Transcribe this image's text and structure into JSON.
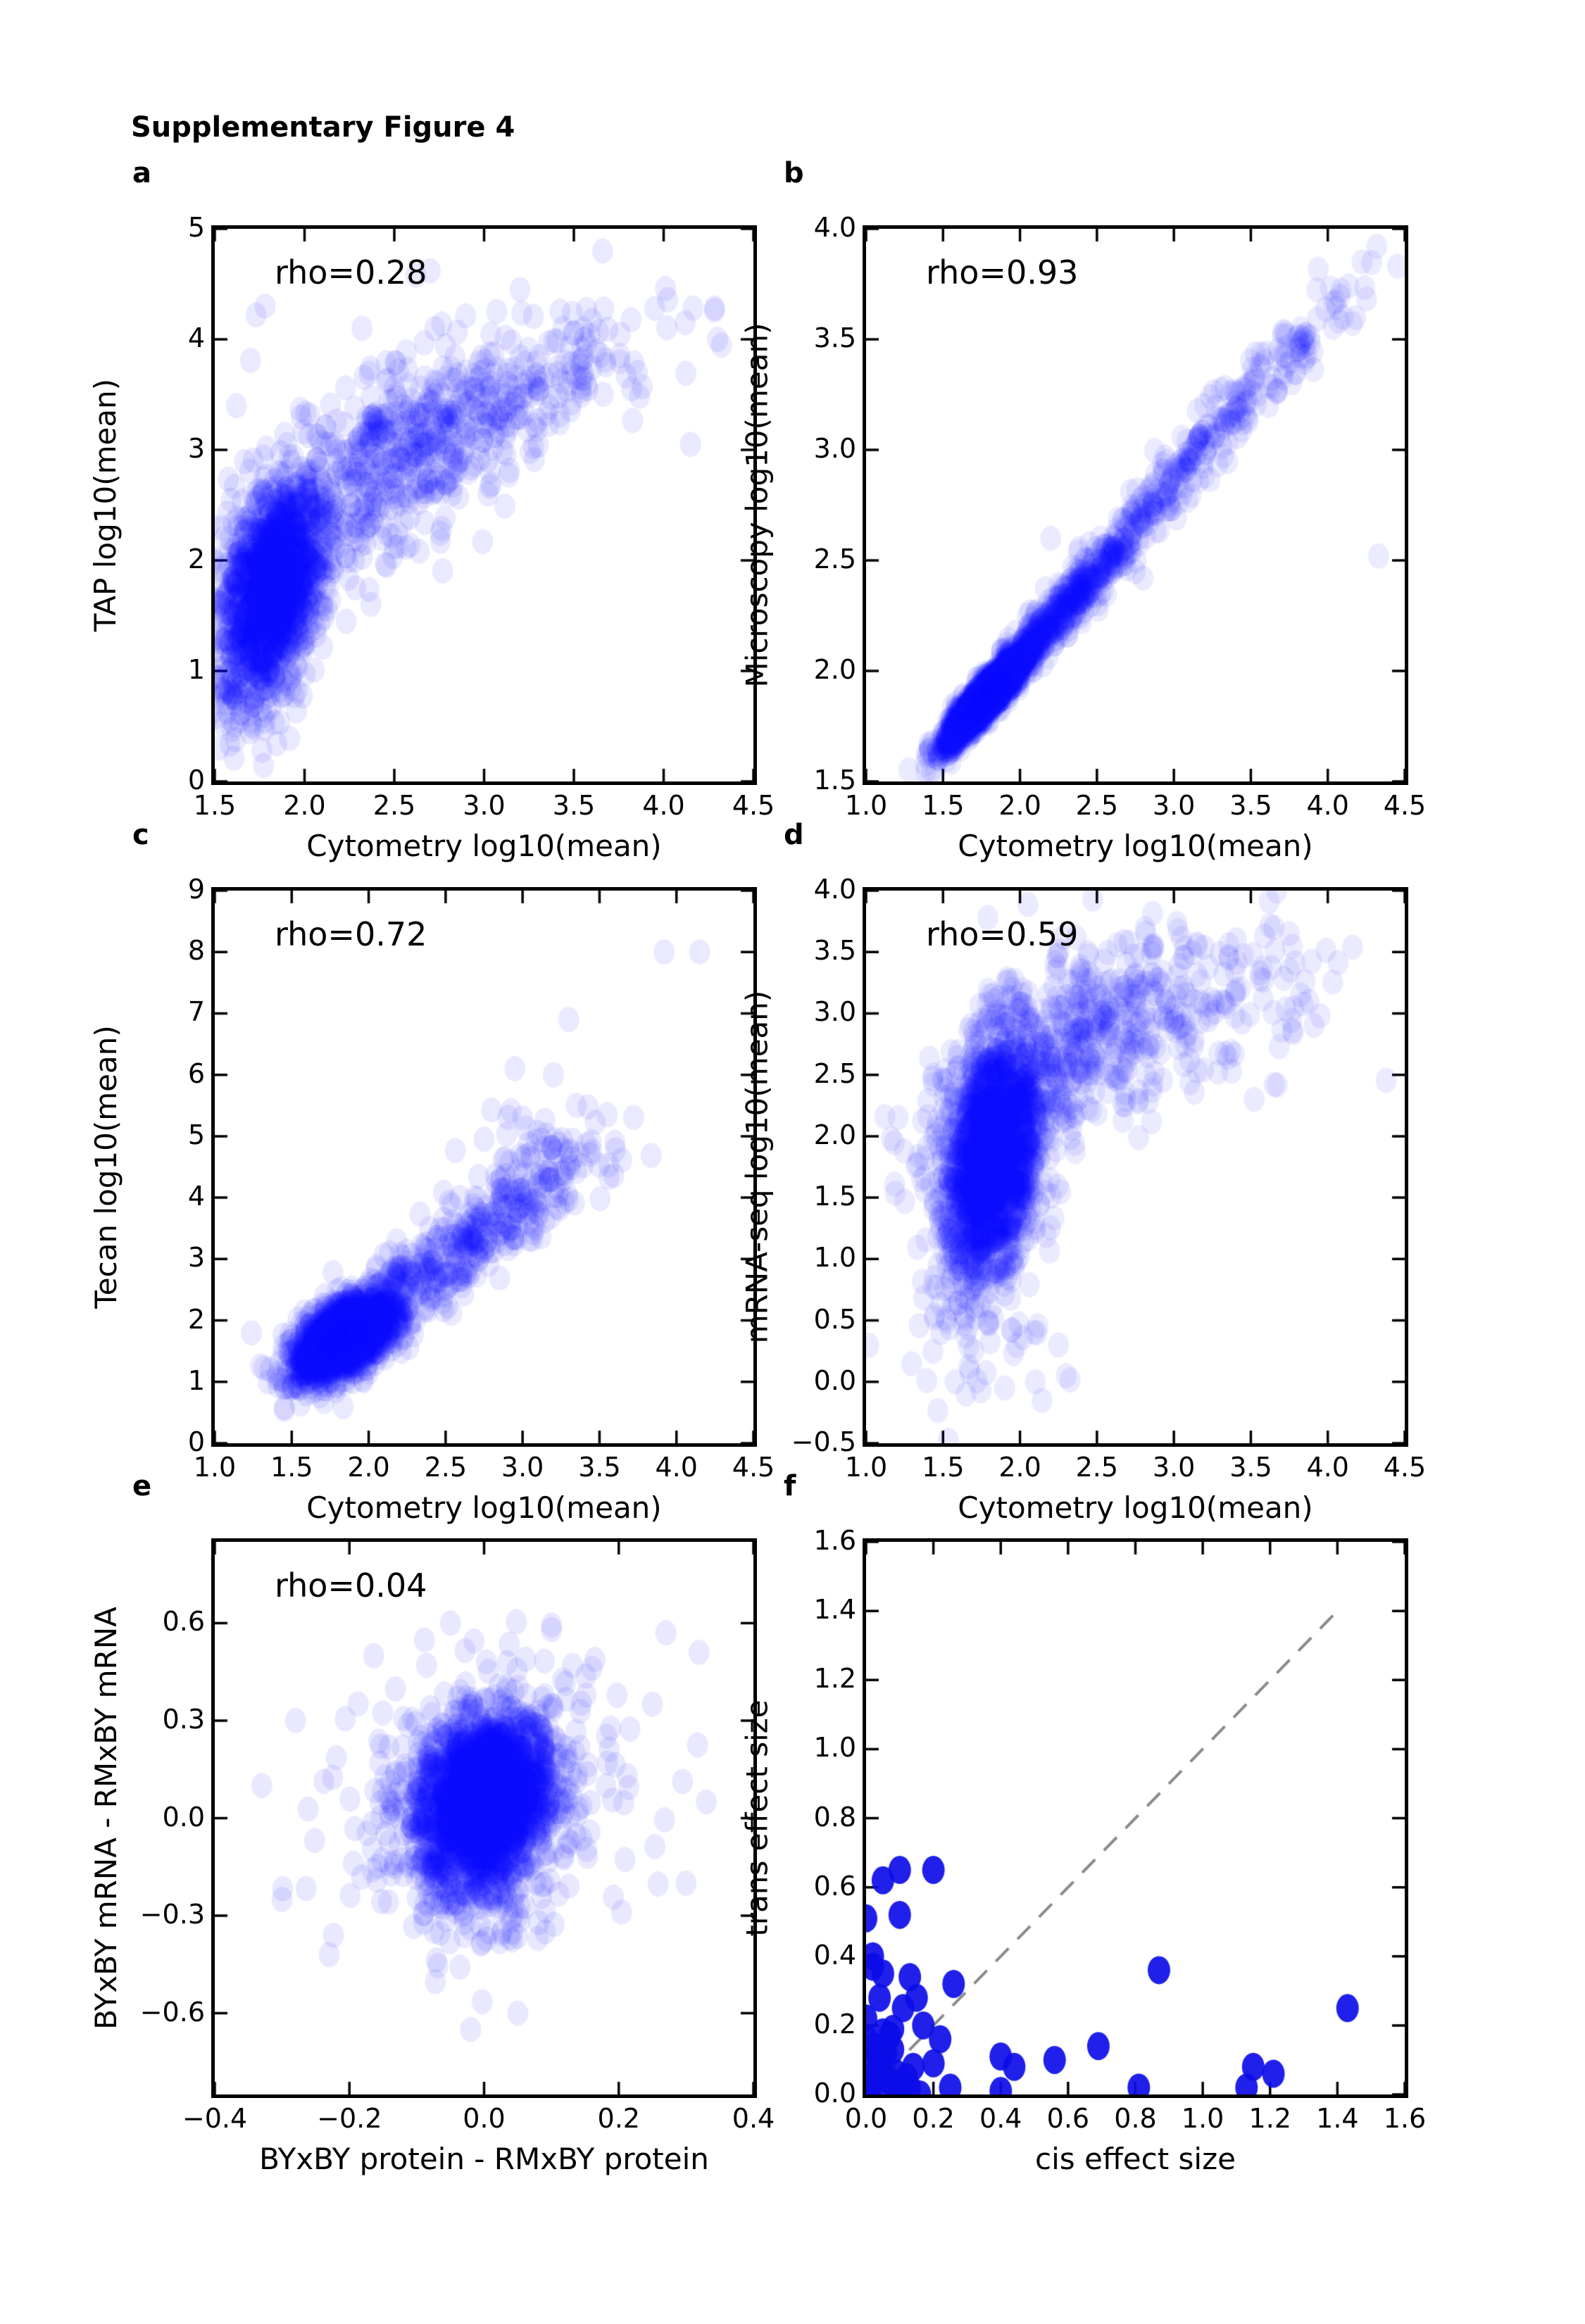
{
  "figure_title": "Supplementary Figure 4",
  "colors": {
    "scatter_blue": "#0000ff",
    "solid_blue": "#0d0de8",
    "diagonal_gray": "#8a8a8a",
    "axis_black": "#000000",
    "background": "#ffffff"
  },
  "chart_data": [
    {
      "panel": "a",
      "type": "scatter",
      "letter": "a",
      "rho": "rho=0.28",
      "xlabel": "Cytometry log10(mean)",
      "ylabel": "TAP log10(mean)",
      "xlim": [
        1.5,
        4.5
      ],
      "ylim": [
        0,
        5
      ],
      "xticks": [
        1.5,
        2.0,
        2.5,
        3.0,
        3.5,
        4.0,
        4.5
      ],
      "xtick_labels": [
        "1.5",
        "2.0",
        "2.5",
        "3.0",
        "3.5",
        "4.0",
        "4.5"
      ],
      "yticks": [
        0,
        1,
        2,
        3,
        4,
        5
      ],
      "ytick_labels": [
        "0",
        "1",
        "2",
        "3",
        "4",
        "5"
      ],
      "style": {
        "color": "#0000ff",
        "alpha": 0.085,
        "rx": 15,
        "ry": 18
      },
      "seed": 101,
      "clusters": [
        {
          "n": 1500,
          "cx": 1.82,
          "cy": 1.72,
          "sx": 0.14,
          "sy": 0.5,
          "corr": 0.35
        },
        {
          "n": 550,
          "cx": 2.45,
          "cy": 2.8,
          "sx": 0.42,
          "sy": 0.55,
          "corr": 0.65
        },
        {
          "n": 180,
          "cx": 3.2,
          "cy": 3.55,
          "sx": 0.42,
          "sy": 0.38,
          "corr": 0.55
        }
      ],
      "outliers": [
        [
          2.7,
          4.62
        ],
        [
          3.2,
          4.45
        ],
        [
          3.66,
          4.8
        ],
        [
          3.95,
          4.28
        ],
        [
          2.32,
          4.1
        ],
        [
          4.12,
          4.15
        ],
        [
          1.78,
          4.3
        ],
        [
          1.73,
          4.22
        ],
        [
          2.62,
          4.58
        ],
        [
          4.3,
          4.0
        ],
        [
          1.62,
          3.4
        ],
        [
          4.15,
          3.05
        ]
      ]
    },
    {
      "panel": "b",
      "type": "scatter",
      "letter": "b",
      "rho": "rho=0.93",
      "xlabel": "Cytometry log10(mean)",
      "ylabel": "Microscopy log10(mean)",
      "xlim": [
        1.0,
        4.5
      ],
      "ylim": [
        1.5,
        4.0
      ],
      "xticks": [
        1.0,
        1.5,
        2.0,
        2.5,
        3.0,
        3.5,
        4.0,
        4.5
      ],
      "xtick_labels": [
        "1.0",
        "1.5",
        "2.0",
        "2.5",
        "3.0",
        "3.5",
        "4.0",
        "4.5"
      ],
      "yticks": [
        1.5,
        2.0,
        2.5,
        3.0,
        3.5,
        4.0
      ],
      "ytick_labels": [
        "1.5",
        "2.0",
        "2.5",
        "3.0",
        "3.5",
        "4.0"
      ],
      "style": {
        "color": "#0000ff",
        "alpha": 0.08,
        "rx": 15,
        "ry": 18
      },
      "seed": 202,
      "clusters": [
        {
          "n": 1900,
          "cx": 1.78,
          "cy": 1.88,
          "sx": 0.14,
          "sy": 0.11,
          "corr": 0.93
        },
        {
          "n": 450,
          "cx": 2.25,
          "cy": 2.25,
          "sx": 0.28,
          "sy": 0.22,
          "corr": 0.96
        },
        {
          "n": 260,
          "cx": 3.0,
          "cy": 2.87,
          "sx": 0.42,
          "sy": 0.33,
          "corr": 0.97
        },
        {
          "n": 60,
          "cx": 3.8,
          "cy": 3.45,
          "sx": 0.25,
          "sy": 0.18,
          "corr": 0.9
        }
      ],
      "outliers": [
        [
          4.33,
          2.52
        ],
        [
          2.8,
          2.42
        ],
        [
          4.05,
          3.67
        ],
        [
          4.1,
          3.6
        ],
        [
          2.2,
          2.6
        ],
        [
          2.75,
          2.45
        ]
      ]
    },
    {
      "panel": "c",
      "type": "scatter",
      "letter": "c",
      "rho": "rho=0.72",
      "xlabel": "Cytometry log10(mean)",
      "ylabel": "Tecan log10(mean)",
      "xlim": [
        1.0,
        4.5
      ],
      "ylim": [
        0,
        9
      ],
      "xticks": [
        1.0,
        1.5,
        2.0,
        2.5,
        3.0,
        3.5,
        4.0,
        4.5
      ],
      "xtick_labels": [
        "1.0",
        "1.5",
        "2.0",
        "2.5",
        "3.0",
        "3.5",
        "4.0",
        "4.5"
      ],
      "yticks": [
        0,
        1,
        2,
        3,
        4,
        5,
        6,
        7,
        8,
        9
      ],
      "ytick_labels": [
        "0",
        "1",
        "2",
        "3",
        "4",
        "5",
        "6",
        "7",
        "8",
        "9"
      ],
      "style": {
        "color": "#0000ff",
        "alpha": 0.085,
        "rx": 15,
        "ry": 18
      },
      "seed": 303,
      "clusters": [
        {
          "n": 1750,
          "cx": 1.85,
          "cy": 1.72,
          "sx": 0.16,
          "sy": 0.33,
          "corr": 0.55
        },
        {
          "n": 380,
          "cx": 2.55,
          "cy": 3.1,
          "sx": 0.42,
          "sy": 0.75,
          "corr": 0.85
        },
        {
          "n": 70,
          "cx": 3.1,
          "cy": 4.6,
          "sx": 0.3,
          "sy": 0.5,
          "corr": 0.5
        }
      ],
      "outliers": [
        [
          3.92,
          8.0
        ],
        [
          4.15,
          8.0
        ],
        [
          3.3,
          6.9
        ],
        [
          2.95,
          6.1
        ],
        [
          3.2,
          6.0
        ],
        [
          3.55,
          5.35
        ],
        [
          3.0,
          5.3
        ],
        [
          3.35,
          5.5
        ],
        [
          2.75,
          4.95
        ],
        [
          3.6,
          4.9
        ]
      ]
    },
    {
      "panel": "d",
      "type": "scatter",
      "letter": "d",
      "rho": "rho=0.59",
      "xlabel": "Cytometry log10(mean)",
      "ylabel": "mRNA-seq log10(mean)",
      "xlim": [
        1.0,
        4.5
      ],
      "ylim": [
        -0.5,
        4.0
      ],
      "xticks": [
        1.0,
        1.5,
        2.0,
        2.5,
        3.0,
        3.5,
        4.0,
        4.5
      ],
      "xtick_labels": [
        "1.0",
        "1.5",
        "2.0",
        "2.5",
        "3.0",
        "3.5",
        "4.0",
        "4.5"
      ],
      "yticks": [
        -0.5,
        0.0,
        0.5,
        1.0,
        1.5,
        2.0,
        2.5,
        3.0,
        3.5,
        4.0
      ],
      "ytick_labels": [
        "−0.5",
        "0.0",
        "0.5",
        "1.0",
        "1.5",
        "2.0",
        "2.5",
        "3.0",
        "3.5",
        "4.0"
      ],
      "style": {
        "color": "#0000ff",
        "alpha": 0.08,
        "rx": 15,
        "ry": 18
      },
      "seed": 404,
      "clusters": [
        {
          "n": 2000,
          "cx": 1.82,
          "cy": 1.8,
          "sx": 0.16,
          "sy": 0.5,
          "corr": 0.3
        },
        {
          "n": 520,
          "cx": 2.35,
          "cy": 2.75,
          "sx": 0.45,
          "sy": 0.42,
          "corr": 0.55
        },
        {
          "n": 110,
          "cx": 3.3,
          "cy": 3.05,
          "sx": 0.45,
          "sy": 0.4,
          "corr": 0.3
        },
        {
          "n": 30,
          "cx": 1.95,
          "cy": 0.2,
          "sx": 0.3,
          "sy": 0.25,
          "corr": 0
        }
      ],
      "outliers": [
        [
          1.65,
          -0.1
        ],
        [
          2.3,
          0.05
        ],
        [
          1.9,
          -0.05
        ],
        [
          2.1,
          0.0
        ],
        [
          1.7,
          0.25
        ],
        [
          2.25,
          0.3
        ],
        [
          3.65,
          3.7
        ],
        [
          3.75,
          3.65
        ]
      ]
    },
    {
      "panel": "e",
      "type": "scatter",
      "letter": "e",
      "rho": "rho=0.04",
      "xlabel": "BYxBY protein - RMxBY protein",
      "ylabel": "BYxBY mRNA - RMxBY mRNA",
      "xlim": [
        -0.4,
        0.4
      ],
      "ylim": [
        -0.85,
        0.85
      ],
      "xticks": [
        -0.4,
        -0.2,
        0.0,
        0.2,
        0.4
      ],
      "xtick_labels": [
        "−0.4",
        "−0.2",
        "0.0",
        "0.2",
        "0.4"
      ],
      "yticks": [
        -0.6,
        -0.3,
        0.0,
        0.3,
        0.6
      ],
      "ytick_labels": [
        "−0.6",
        "−0.3",
        "0.0",
        "0.3",
        "0.6"
      ],
      "style": {
        "color": "#0000ff",
        "alpha": 0.09,
        "rx": 15,
        "ry": 18
      },
      "seed": 505,
      "clusters": [
        {
          "n": 2300,
          "cx": 0.0,
          "cy": 0.05,
          "sx": 0.05,
          "sy": 0.13,
          "corr": 0.18
        },
        {
          "n": 300,
          "cx": 0.0,
          "cy": 0.04,
          "sx": 0.11,
          "sy": 0.22,
          "corr": 0.1
        }
      ],
      "outliers": [
        [
          -0.33,
          0.1
        ],
        [
          -0.28,
          0.3
        ],
        [
          0.33,
          0.05
        ],
        [
          0.3,
          -0.2
        ],
        [
          -0.3,
          -0.25
        ],
        [
          0.27,
          0.57
        ],
        [
          -0.05,
          0.6
        ],
        [
          0.1,
          0.58
        ],
        [
          -0.02,
          -0.65
        ],
        [
          0.05,
          -0.6
        ],
        [
          -0.23,
          -0.42
        ],
        [
          0.25,
          0.35
        ]
      ]
    },
    {
      "panel": "f",
      "type": "scatter",
      "letter": "f",
      "rho": null,
      "xlabel": "cis effect size",
      "ylabel": "trans effect size",
      "xlim": [
        0,
        1.6
      ],
      "ylim": [
        0,
        1.6
      ],
      "xticks": [
        0,
        0.2,
        0.4,
        0.6,
        0.8,
        1.0,
        1.2,
        1.4,
        1.6
      ],
      "xtick_labels": [
        "0.0",
        "0.2",
        "0.4",
        "0.6",
        "0.8",
        "1.0",
        "1.2",
        "1.4",
        "1.6"
      ],
      "yticks": [
        0,
        0.2,
        0.4,
        0.6,
        0.8,
        1.0,
        1.2,
        1.4,
        1.6
      ],
      "ytick_labels": [
        "0.0",
        "0.2",
        "0.4",
        "0.6",
        "0.8",
        "1.0",
        "1.2",
        "1.4",
        "1.6"
      ],
      "style": {
        "color": "#0d0de8",
        "alpha": 0.92,
        "rx": 16,
        "ry": 20
      },
      "seed": 606,
      "points": [
        [
          0.01,
          0.01
        ],
        [
          0.02,
          0.03
        ],
        [
          0.0,
          0.05
        ],
        [
          0.03,
          0.05
        ],
        [
          0.05,
          0.07
        ],
        [
          0.07,
          0.04
        ],
        [
          0.09,
          0.06
        ],
        [
          0.1,
          0.03
        ],
        [
          0.12,
          0.05
        ],
        [
          0.13,
          0.02
        ],
        [
          0.06,
          0.0
        ],
        [
          0.1,
          0.0
        ],
        [
          0.16,
          0.0
        ],
        [
          0.02,
          0.08
        ],
        [
          0.04,
          0.1
        ],
        [
          0.06,
          0.12
        ],
        [
          0.08,
          0.13
        ],
        [
          0.02,
          0.14
        ],
        [
          0.0,
          0.16
        ],
        [
          0.03,
          0.12
        ],
        [
          0.14,
          0.08
        ],
        [
          0.05,
          0.18
        ],
        [
          0.08,
          0.19
        ],
        [
          0.0,
          0.22
        ],
        [
          0.07,
          0.17
        ],
        [
          0.17,
          0.2
        ],
        [
          0.22,
          0.16
        ],
        [
          0.11,
          0.25
        ],
        [
          0.04,
          0.28
        ],
        [
          0.15,
          0.28
        ],
        [
          0.13,
          0.34
        ],
        [
          0.26,
          0.32
        ],
        [
          0.05,
          0.35
        ],
        [
          0.02,
          0.37
        ],
        [
          0.02,
          0.4
        ],
        [
          0.0,
          0.51
        ],
        [
          0.1,
          0.52
        ],
        [
          0.05,
          0.62
        ],
        [
          0.1,
          0.65
        ],
        [
          0.2,
          0.65
        ],
        [
          0.87,
          0.36
        ],
        [
          1.43,
          0.25
        ],
        [
          0.69,
          0.14
        ],
        [
          0.56,
          0.1
        ],
        [
          0.4,
          0.11
        ],
        [
          0.44,
          0.08
        ],
        [
          0.2,
          0.09
        ],
        [
          0.25,
          0.02
        ],
        [
          1.15,
          0.08
        ],
        [
          1.21,
          0.06
        ],
        [
          0.81,
          0.02
        ],
        [
          1.13,
          0.02
        ],
        [
          0.4,
          0.01
        ]
      ],
      "diagonal": {
        "x1": 0,
        "y1": 0,
        "x2": 1.41,
        "y2": 1.41,
        "dash": [
          26,
          18
        ],
        "color": "#8a8a8a",
        "width": 4
      }
    }
  ]
}
